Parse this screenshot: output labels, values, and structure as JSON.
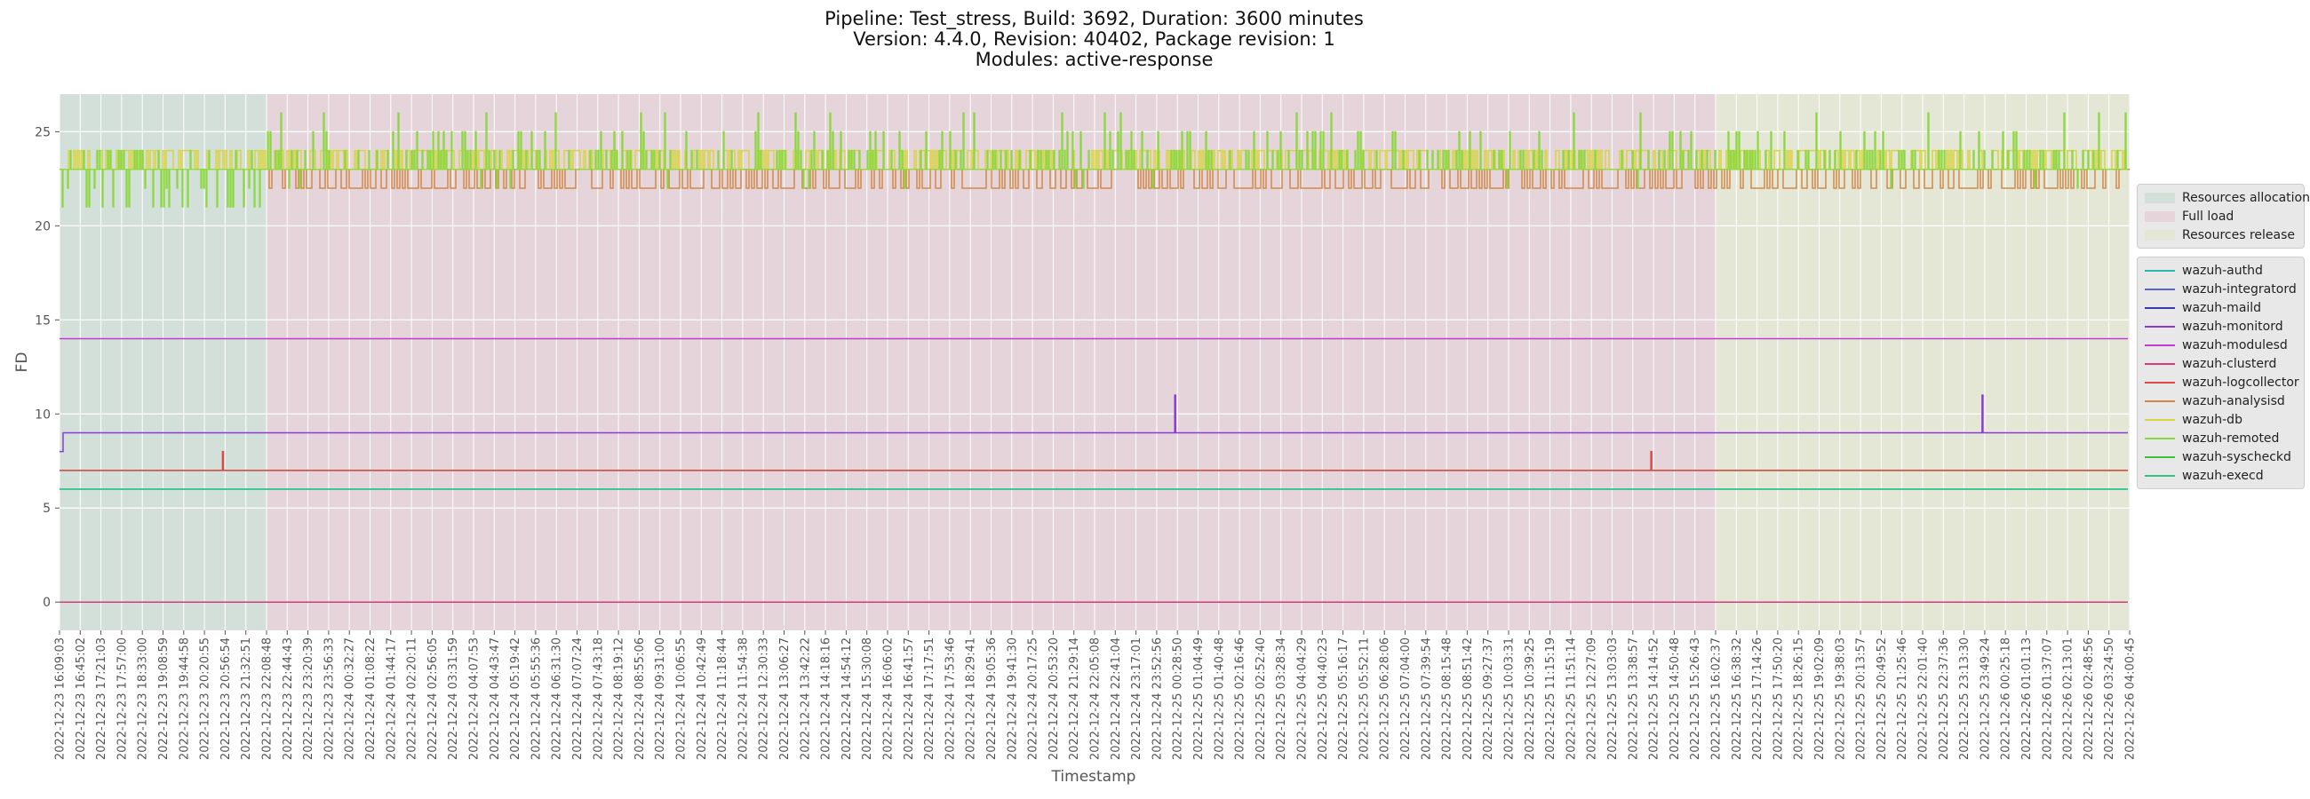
{
  "titles": {
    "line1": "Pipeline: Test_stress, Build: 3692, Duration: 3600 minutes",
    "line2": "Version: 4.4.0, Revision: 40402, Package revision: 1",
    "line3": "Modules: active-response"
  },
  "chart_data": {
    "type": "line",
    "title": "Pipeline: Test_stress, Build: 3692, Duration: 3600 minutes",
    "xlabel": "Timestamp",
    "ylabel": "FD",
    "ylim": [
      -1.5,
      27
    ],
    "yticks": [
      0,
      5,
      10,
      15,
      20,
      25
    ],
    "grid": true,
    "legend_position": "outside-right",
    "x_tick_labels": [
      "2022-12-23 16:09:03",
      "2022-12-23 16:45:02",
      "2022-12-23 17:21:03",
      "2022-12-23 17:57:00",
      "2022-12-23 18:33:00",
      "2022-12-23 19:08:59",
      "2022-12-23 19:44:58",
      "2022-12-23 20:20:55",
      "2022-12-23 20:56:54",
      "2022-12-23 21:32:51",
      "2022-12-23 22:08:48",
      "2022-12-23 22:44:43",
      "2022-12-23 23:20:39",
      "2022-12-23 23:56:33",
      "2022-12-24 00:32:27",
      "2022-12-24 01:08:22",
      "2022-12-24 01:44:17",
      "2022-12-24 02:20:11",
      "2022-12-24 02:56:05",
      "2022-12-24 03:31:59",
      "2022-12-24 04:07:53",
      "2022-12-24 04:43:47",
      "2022-12-24 05:19:42",
      "2022-12-24 05:55:36",
      "2022-12-24 06:31:30",
      "2022-12-24 07:07:24",
      "2022-12-24 07:43:18",
      "2022-12-24 08:19:12",
      "2022-12-24 08:55:06",
      "2022-12-24 09:31:00",
      "2022-12-24 10:06:55",
      "2022-12-24 10:42:49",
      "2022-12-24 11:18:44",
      "2022-12-24 11:54:38",
      "2022-12-24 12:30:33",
      "2022-12-24 13:06:27",
      "2022-12-24 13:42:22",
      "2022-12-24 14:18:16",
      "2022-12-24 14:54:12",
      "2022-12-24 15:30:08",
      "2022-12-24 16:06:02",
      "2022-12-24 16:41:57",
      "2022-12-24 17:17:51",
      "2022-12-24 17:53:46",
      "2022-12-24 18:29:41",
      "2022-12-24 19:05:36",
      "2022-12-24 19:41:30",
      "2022-12-24 20:17:25",
      "2022-12-24 20:53:20",
      "2022-12-24 21:29:14",
      "2022-12-24 22:05:08",
      "2022-12-24 22:41:04",
      "2022-12-24 23:17:01",
      "2022-12-24 23:52:56",
      "2022-12-25 00:28:50",
      "2022-12-25 01:04:49",
      "2022-12-25 01:40:48",
      "2022-12-25 02:16:46",
      "2022-12-25 02:52:40",
      "2022-12-25 03:28:34",
      "2022-12-25 04:04:29",
      "2022-12-25 04:40:23",
      "2022-12-25 05:16:17",
      "2022-12-25 05:52:11",
      "2022-12-25 06:28:06",
      "2022-12-25 07:04:00",
      "2022-12-25 07:39:54",
      "2022-12-25 08:15:48",
      "2022-12-25 08:51:42",
      "2022-12-25 09:27:37",
      "2022-12-25 10:03:31",
      "2022-12-25 10:39:25",
      "2022-12-25 11:15:19",
      "2022-12-25 11:51:14",
      "2022-12-25 12:27:09",
      "2022-12-25 13:03:03",
      "2022-12-25 13:38:57",
      "2022-12-25 14:14:52",
      "2022-12-25 14:50:48",
      "2022-12-25 15:26:43",
      "2022-12-25 16:02:37",
      "2022-12-25 16:38:32",
      "2022-12-25 17:14:26",
      "2022-12-25 17:50:20",
      "2022-12-25 18:26:15",
      "2022-12-25 19:02:09",
      "2022-12-25 19:38:03",
      "2022-12-25 20:13:57",
      "2022-12-25 20:49:52",
      "2022-12-25 21:25:46",
      "2022-12-25 22:01:40",
      "2022-12-25 22:37:36",
      "2022-12-25 23:13:30",
      "2022-12-25 23:49:24",
      "2022-12-26 00:25:18",
      "2022-12-26 01:01:13",
      "2022-12-26 01:37:07",
      "2022-12-26 02:13:01",
      "2022-12-26 02:48:56",
      "2022-12-26 03:24:50",
      "2022-12-26 04:00:45"
    ],
    "phases": [
      {
        "name": "Resources allocation",
        "start": "2022-12-23 16:09:03",
        "end": "2022-12-23 22:08:48",
        "color": "#d3e0da"
      },
      {
        "name": "Full load",
        "start": "2022-12-23 22:08:48",
        "end": "2022-12-25 16:02:37",
        "color": "#e5d4d9"
      },
      {
        "name": "Resources release",
        "start": "2022-12-25 16:02:37",
        "end": "2022-12-26 04:00:45",
        "color": "#e4e6d6"
      }
    ],
    "series": [
      {
        "name": "wazuh-authd",
        "color": "#2ab7b0",
        "values_summary": {
          "constant": 6
        }
      },
      {
        "name": "wazuh-integratord",
        "color": "#5b67c4",
        "values_summary": {
          "constant": 0
        }
      },
      {
        "name": "wazuh-maild",
        "color": "#3a3aa8",
        "values_summary": {
          "constant": 0
        }
      },
      {
        "name": "wazuh-monitord",
        "color": "#8a3ad6",
        "values_summary": {
          "start": 8,
          "steady": 9,
          "spikes": [
            {
              "x": "2022-12-25 00:28:50",
              "y": 11
            },
            {
              "x": "2022-12-25 23:49:24",
              "y": 11
            }
          ]
        }
      },
      {
        "name": "wazuh-modulesd",
        "color": "#c43ad0",
        "values_summary": {
          "constant": 14
        }
      },
      {
        "name": "wazuh-clusterd",
        "color": "#d63a7a",
        "values_summary": {
          "constant": 0
        }
      },
      {
        "name": "wazuh-logcollector",
        "color": "#e04848",
        "values_summary": {
          "steady": 7,
          "spikes": [
            {
              "x": "2022-12-23 20:56:54",
              "y": 8
            },
            {
              "x": "2022-12-25 14:14:52",
              "y": 8
            }
          ]
        }
      },
      {
        "name": "wazuh-analysisd",
        "color": "#d38a48",
        "values_summary": {
          "range": [
            22,
            23
          ],
          "note": "oscillates between 22 and 23 from 22:08:48"
        }
      },
      {
        "name": "wazuh-db",
        "color": "#d8d444",
        "values_summary": {
          "range": [
            23,
            24
          ]
        }
      },
      {
        "name": "wazuh-remoted",
        "color": "#8cd840",
        "values_summary": {
          "range": [
            21,
            26
          ],
          "steady": 23
        }
      },
      {
        "name": "wazuh-syscheckd",
        "color": "#3cc03c",
        "values_summary": {
          "constant": 7
        }
      },
      {
        "name": "wazuh-execd",
        "color": "#2cc489",
        "values_summary": {
          "constant": 6
        }
      }
    ]
  },
  "legend": {
    "phases": [
      {
        "label": "Resources allocation",
        "color": "#d3e0da"
      },
      {
        "label": "Full load",
        "color": "#e5d4d9"
      },
      {
        "label": "Resources release",
        "color": "#e4e6d6"
      }
    ],
    "series": [
      {
        "label": "wazuh-authd",
        "color": "#2ab7b0"
      },
      {
        "label": "wazuh-integratord",
        "color": "#5b67c4"
      },
      {
        "label": "wazuh-maild",
        "color": "#3a3aa8"
      },
      {
        "label": "wazuh-monitord",
        "color": "#8a3ad6"
      },
      {
        "label": "wazuh-modulesd",
        "color": "#c43ad0"
      },
      {
        "label": "wazuh-clusterd",
        "color": "#d63a7a"
      },
      {
        "label": "wazuh-logcollector",
        "color": "#e04848"
      },
      {
        "label": "wazuh-analysisd",
        "color": "#d38a48"
      },
      {
        "label": "wazuh-db",
        "color": "#d8d444"
      },
      {
        "label": "wazuh-remoted",
        "color": "#8cd840"
      },
      {
        "label": "wazuh-syscheckd",
        "color": "#3cc03c"
      },
      {
        "label": "wazuh-execd",
        "color": "#2cc489"
      }
    ]
  }
}
